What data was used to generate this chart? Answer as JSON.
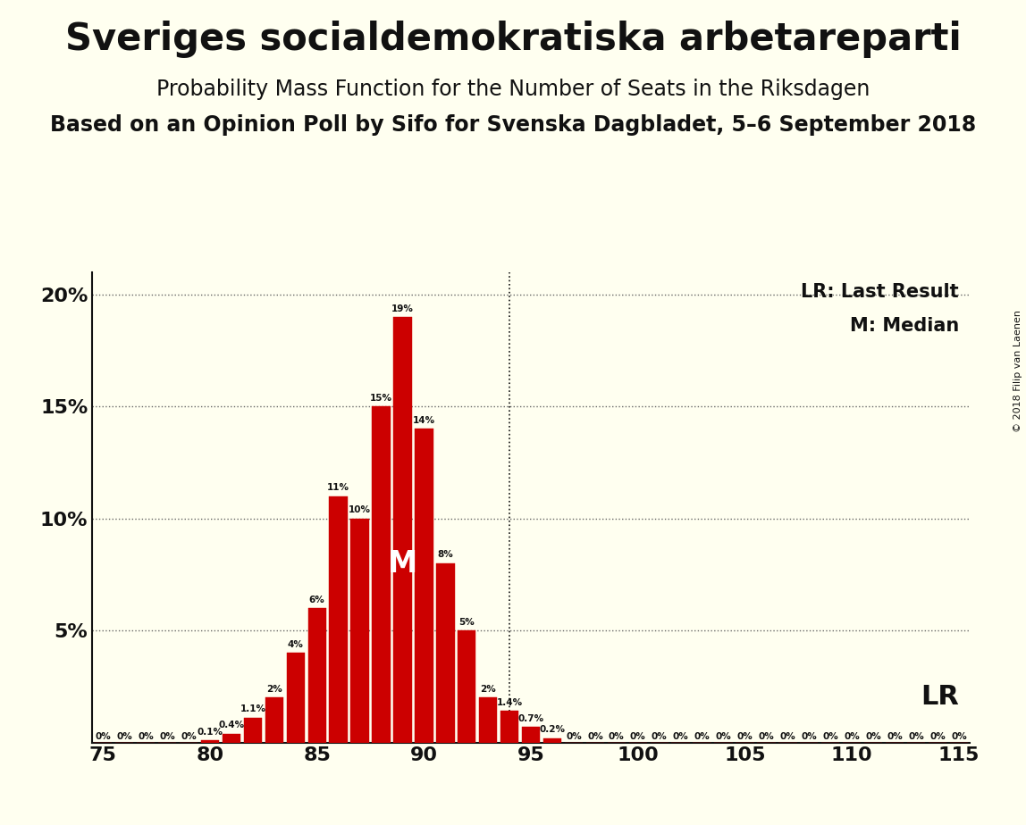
{
  "title": "Sveriges socialdemokratiska arbetareparti",
  "subtitle1": "Probability Mass Function for the Number of Seats in the Riksdagen",
  "subtitle2": "Based on an Opinion Poll by Sifo for Svenska Dagbladet, 5–6 September 2018",
  "copyright": "© 2018 Filip van Laenen",
  "seats": [
    75,
    76,
    77,
    78,
    79,
    80,
    81,
    82,
    83,
    84,
    85,
    86,
    87,
    88,
    89,
    90,
    91,
    92,
    93,
    94,
    95,
    96,
    97,
    98,
    99,
    100,
    101,
    102,
    103,
    104,
    105,
    106,
    107,
    108,
    109,
    110,
    111,
    112,
    113,
    114,
    115
  ],
  "values": [
    0,
    0,
    0,
    0,
    0,
    0.1,
    0.4,
    1.1,
    2,
    4,
    6,
    11,
    10,
    15,
    19,
    14,
    8,
    5,
    2,
    1.4,
    0.7,
    0.2,
    0,
    0,
    0,
    0,
    0,
    0,
    0,
    0,
    0,
    0,
    0,
    0,
    0,
    0,
    0,
    0,
    0,
    0,
    0
  ],
  "labels": [
    "0%",
    "0%",
    "0%",
    "0%",
    "0%",
    "0.1%",
    "0.4%",
    "1.1%",
    "2%",
    "4%",
    "6%",
    "11%",
    "10%",
    "15%",
    "19%",
    "14%",
    "8%",
    "5%",
    "2%",
    "1.4%",
    "0.7%",
    "0.2%",
    "0%",
    "0%",
    "0%",
    "0%",
    "0%",
    "0%",
    "0%",
    "0%",
    "0%",
    "0%",
    "0%",
    "0%",
    "0%",
    "0%",
    "0%",
    "0%",
    "0%",
    "0%",
    "0%"
  ],
  "bar_color": "#cc0000",
  "bg_color": "#fffff0",
  "text_color": "#111111",
  "median_seat": 89,
  "lr_seat": 94,
  "lr_label": "LR",
  "median_label": "M",
  "xlim": [
    74.5,
    115.5
  ],
  "ylim": [
    0,
    21
  ],
  "yticks": [
    0,
    5,
    10,
    15,
    20
  ],
  "ytick_labels": [
    "",
    "5%",
    "10%",
    "15%",
    "20%"
  ],
  "xticks": [
    75,
    80,
    85,
    90,
    95,
    100,
    105,
    110,
    115
  ],
  "grid_color": "#666666",
  "title_fontsize": 30,
  "subtitle1_fontsize": 17,
  "subtitle2_fontsize": 17,
  "label_fontsize": 7.5,
  "axis_tick_fontsize": 16
}
